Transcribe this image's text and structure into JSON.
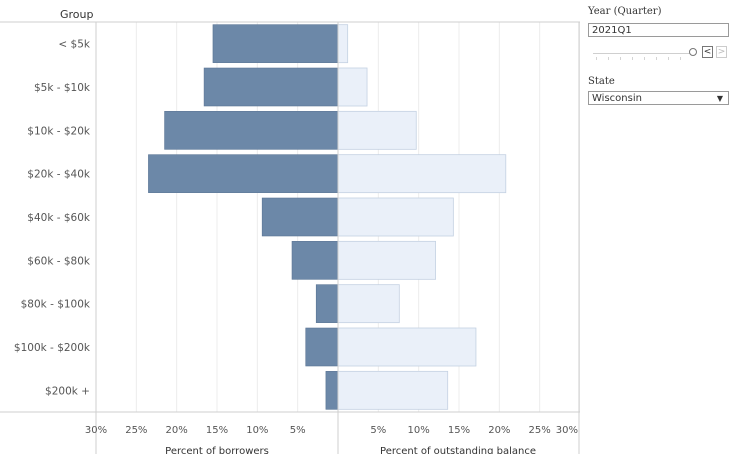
{
  "chart_data": {
    "type": "bar",
    "orientation": "horizontal-diverging",
    "row_header": "Group",
    "categories": [
      "< $5k",
      "$5k - $10k",
      "$10k - $20k",
      "$20k - $40k",
      "$40k - $60k",
      "$60k - $80k",
      "$80k - $100k",
      "$100k - $200k",
      "$200k +"
    ],
    "series": [
      {
        "name": "Percent of borrowers",
        "side": "left",
        "color": "#6c88a8",
        "values": [
          15.5,
          16.6,
          21.5,
          23.5,
          9.4,
          5.7,
          2.7,
          4.0,
          1.5
        ]
      },
      {
        "name": "Percent of outstanding balance",
        "side": "right",
        "color": "#eaf0f9",
        "values": [
          1.2,
          3.6,
          9.7,
          20.8,
          14.3,
          12.1,
          7.6,
          17.1,
          13.6
        ]
      }
    ],
    "left_axis": {
      "label": "Percent of borrowers",
      "ticks": [
        "30%",
        "25%",
        "20%",
        "15%",
        "10%",
        "5%"
      ],
      "tick_values": [
        30,
        25,
        20,
        15,
        10,
        5
      ],
      "range": [
        0,
        30
      ]
    },
    "right_axis": {
      "label": "Percent of outstanding balance",
      "ticks": [
        "5%",
        "10%",
        "15%",
        "20%",
        "25%",
        "30%"
      ],
      "tick_values": [
        5,
        10,
        15,
        20,
        25,
        30
      ],
      "range": [
        0,
        30
      ]
    },
    "gridlines": true
  },
  "filters": {
    "year_quarter": {
      "title": "Year (Quarter)",
      "value": "2021Q1",
      "prev_symbol": "<",
      "next_symbol": ">"
    },
    "state": {
      "title": "State",
      "value": "Wisconsin",
      "caret": "▼"
    }
  },
  "colors": {
    "borrowers": "#6c88a8",
    "balance": "#eaf0f9",
    "balance_border": "#c4d1e2",
    "grid": "#ececec",
    "axis": "#cfcfcf",
    "text": "#555555"
  }
}
